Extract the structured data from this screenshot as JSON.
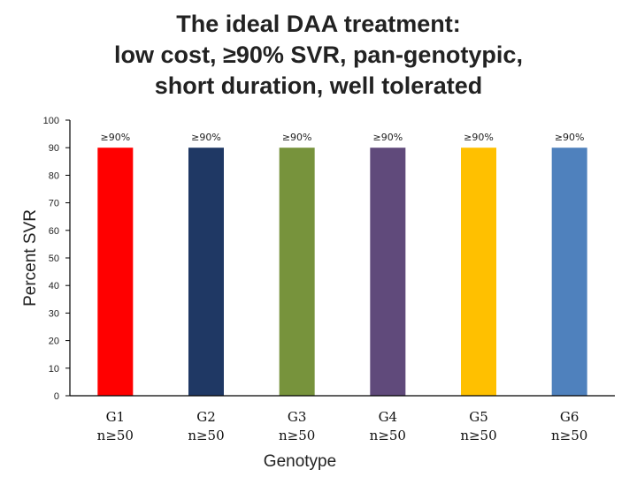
{
  "title_lines": [
    "The ideal DAA treatment:",
    "low cost, ≥90% SVR, pan-genotypic,",
    "short duration, well tolerated"
  ],
  "chart_data": {
    "type": "bar",
    "title": "The ideal DAA treatment: low cost, ≥90% SVR, pan-genotypic, short duration, well tolerated",
    "xlabel": "Genotype",
    "ylabel": "Percent SVR",
    "ylim": [
      0,
      100
    ],
    "yticks": [
      0,
      10,
      20,
      30,
      40,
      50,
      60,
      70,
      80,
      90,
      100
    ],
    "grid": false,
    "categories": [
      "G1",
      "G2",
      "G3",
      "G4",
      "G5",
      "G6"
    ],
    "category_sublabels": [
      "n≥50",
      "n≥50",
      "n≥50",
      "n≥50",
      "n≥50",
      "n≥50"
    ],
    "values": [
      90,
      90,
      90,
      90,
      90,
      90
    ],
    "data_labels": [
      "≥90%",
      "≥90%",
      "≥90%",
      "≥90%",
      "≥90%",
      "≥90%"
    ],
    "colors": [
      "#ff0000",
      "#1f3864",
      "#77933c",
      "#604a7b",
      "#ffc000",
      "#4f81bd"
    ]
  }
}
